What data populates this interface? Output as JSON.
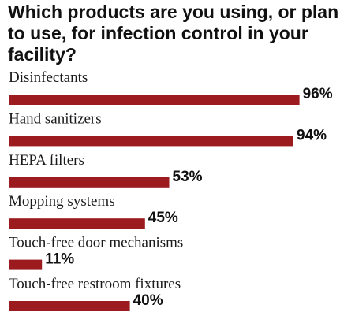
{
  "chart_data": {
    "type": "bar",
    "orientation": "horizontal",
    "title": "Which products are you using, or plan to use, for infection control in your facility?",
    "categories": [
      "Disinfectants",
      "Hand sanitizers",
      "HEPA filters",
      "Mopping systems",
      "Touch-free door mechanisms",
      "Touch-free restroom fixtures"
    ],
    "values": [
      96,
      94,
      53,
      45,
      11,
      40
    ],
    "value_labels": [
      "96%",
      "94%",
      "53%",
      "45%",
      "11%",
      "40%"
    ],
    "unit": "%",
    "xlim": [
      0,
      100
    ],
    "grid": false,
    "legend": "none",
    "bar_color": "#9b1b1f"
  }
}
